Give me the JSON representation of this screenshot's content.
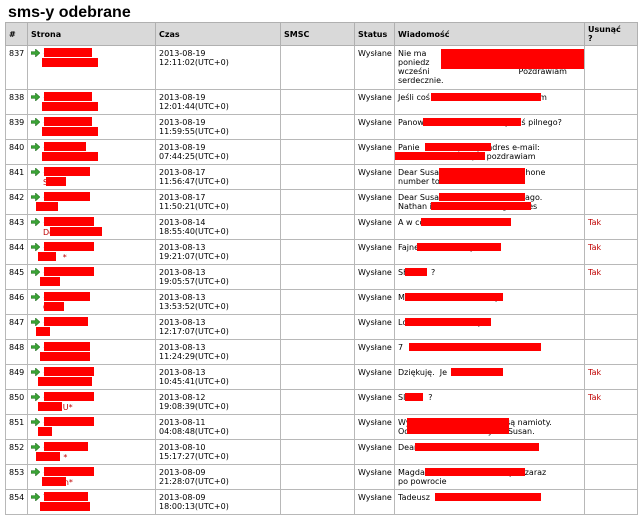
{
  "page_title": "sms-y odebrane",
  "columns": [
    "#",
    "Strona",
    "Czas",
    "SMSC",
    "Status",
    "Wiadomość",
    "Usunąć\n?"
  ],
  "rows": [
    {
      "id": "837",
      "phone": "+4        7",
      "name": "M          s*",
      "time": "2013-08-19 12:11:02(UTC+0)",
      "smsc": "",
      "status": "Wysłane",
      "message": "Nie ma                                    d przyszłego\nponiedz                                   skonsultować\nwcześni                                   Pozdrawiam\nserdecznie.",
      "delete": ""
    },
    {
      "id": "838",
      "phone": "+4        7",
      "name": "M          s*",
      "time": "2013-08-19 12:01:44(UTC+0)",
      "smsc": "",
      "status": "Wysłane",
      "message": "Jeśli coś                              telefonem",
      "delete": ""
    },
    {
      "id": "839",
      "phone": "+4        7",
      "name": "M          s*",
      "time": "2013-08-19 11:59:55(UTC+0)",
      "smsc": "",
      "status": "Wysłane",
      "message": "Panow                          . Czy coś pilnego?",
      "delete": ""
    },
    {
      "id": "840",
      "phone": "+4        6",
      "name": "M          s*",
      "time": "2013-08-19 07:44:25(UTC+0)",
      "smsc": "",
      "status": "Wysłane",
      "message": "Panie               podaje adres e-mail:\n                             pl.  pozdrawiam",
      "delete": ""
    },
    {
      "id": "841",
      "phone": "+2        30",
      "name": "Su        ",
      "time": "2013-08-17 11:56:47(UTC+0)",
      "smsc": "",
      "status": "Wysłane",
      "message": "Dear Susan                        telephone\nnumber to th",
      "delete": ""
    },
    {
      "id": "842",
      "phone": "+2        0",
      "name": "S         ",
      "time": "2013-08-17 11:50:21(UTC+0)",
      "smsc": "",
      "status": "Wysłane",
      "message": "Dear Susan                        utes ago.\nNathan is n                       g. Kisses",
      "delete": ""
    },
    {
      "id": "843",
      "phone": "+4        71",
      "name": "Do          m*",
      "time": "2013-08-14 18:55:40(UTC+0)",
      "smsc": "",
      "status": "Wysłane",
      "message": "A w co",
      "delete": "Tak"
    },
    {
      "id": "844",
      "phone": "+4        44",
      "name": "L      *",
      "time": "2013-08-13 19:21:07(UTC+0)",
      "smsc": "",
      "status": "Wysłane",
      "message": "Fajne                    y?",
      "delete": "Tak"
    },
    {
      "id": "845",
      "phone": "+4        44",
      "name": "LO      ",
      "time": "2013-08-13 19:05:57(UTC+0)",
      "smsc": "",
      "status": "Wysłane",
      "message": "Sh         ?",
      "delete": "Tak"
    },
    {
      "id": "846",
      "phone": "+4        4",
      "name": "Ch      ",
      "time": "2013-08-13 13:53:52(UTC+0)",
      "smsc": "",
      "status": "Wysłane",
      "message": "Ma                          dzinę",
      "delete": ""
    },
    {
      "id": "847",
      "phone": "+48       48",
      "name": "T      ",
      "time": "2013-08-13 12:17:07(UTC+0)",
      "smsc": "",
      "status": "Wysłane",
      "message": "Ld                     dziny",
      "delete": ""
    },
    {
      "id": "848",
      "phone": "+4        2",
      "name": "K         c*",
      "time": "2013-08-13 11:24:29(UTC+0)",
      "smsc": "",
      "status": "Wysłane",
      "message": "7           3 A                    k",
      "delete": ""
    },
    {
      "id": "849",
      "phone": "+4        4",
      "name": "A          s*",
      "time": "2013-08-13 10:45:41(UTC+0)",
      "smsc": "",
      "status": "Wysłane",
      "message": "Dziękuję.  Je            ana!",
      "delete": "Tak"
    },
    {
      "id": "850",
      "phone": "+4        44",
      "name": "L      U*",
      "time": "2013-08-12 19:08:39(UTC+0)",
      "smsc": "",
      "status": "Wysłane",
      "message": "Sl         ?",
      "delete": "Tak"
    },
    {
      "id": "851",
      "phone": "+4        48",
      "name": "T      ",
      "time": "2013-08-11 04:08:48(UTC+0)",
      "smsc": "",
      "status": "Wysłane",
      "message": "Wy                             ynku są namioty.\nOde                             y do Susan.",
      "delete": ""
    },
    {
      "id": "852",
      "phone": "+2        0",
      "name": "S      *",
      "time": "2013-08-10 15:17:27(UTC+0)",
      "smsc": "",
      "status": "Wysłane",
      "message": "Dear                                  Kisses",
      "delete": ""
    },
    {
      "id": "853",
      "phone": "+4        93",
      "name": "C      n*",
      "time": "2013-08-09 21:28:07(UTC+0)",
      "smsc": "",
      "status": "Wysłane",
      "message": "Magda                        Zrobię to zaraz\npo powrocie",
      "delete": ""
    },
    {
      "id": "854",
      "phone": "7         3",
      "name": "W          a*",
      "time": "2013-08-09 18:00:13(UTC+0)",
      "smsc": "",
      "status": "Wysłane",
      "message": "Tadeusz                          0",
      "delete": ""
    }
  ],
  "colors": {
    "redaction": "#ff0000",
    "header_bg": "#d9d9d9",
    "link_red": "#c00000",
    "arrow_green": "#3aa335"
  },
  "icons": {
    "direction": "green-right-arrow-icon"
  }
}
